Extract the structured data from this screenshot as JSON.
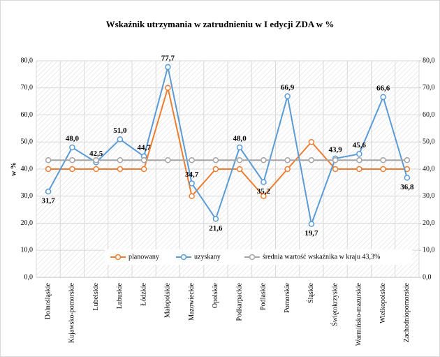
{
  "chart_data": {
    "type": "line",
    "title": "Wskaźnik utrzymania  w zatrudnieniu  w I edycji ZDA w %",
    "y_label": "w %",
    "categories": [
      "Dolnośląskie",
      "Kujawsko-pomorskie",
      "Lubelskie",
      "Lubuskie",
      "Łódzkie",
      "Małopolskie",
      "Mazowieckie",
      "Opolskie",
      "Podkarpackie",
      "Podlaskie",
      "Pomorskie",
      "Śląskie",
      "Świętokrzyskie",
      "Warmińsko-mazurskie",
      "Wielkopolskie",
      "Zachodniopomorskie"
    ],
    "series": [
      {
        "name": "planowany",
        "color": "#ed7d31",
        "values": [
          40,
          40,
          40,
          40,
          40,
          70,
          30,
          40,
          40,
          30,
          40,
          50,
          40,
          40,
          40,
          40
        ]
      },
      {
        "name": "uzyskany",
        "color": "#5b9bd5",
        "values": [
          31.7,
          48.0,
          42.5,
          51.0,
          44.7,
          77.7,
          34.7,
          21.6,
          48.0,
          35.2,
          66.9,
          19.7,
          43.9,
          45.6,
          66.6,
          36.8
        ],
        "value_labels": [
          "31,7",
          "48,0",
          "42,5",
          "51,0",
          "44,7",
          "77,7",
          "34,7",
          "21,6",
          "48,0",
          "35,2",
          "66,9",
          "19,7",
          "43,9",
          "45,6",
          "66,6",
          "36,8"
        ]
      },
      {
        "name": "średnia wartość wskaźnika w kraju 43,3%",
        "color": "#a5a5a5",
        "values": [
          43.3,
          43.3,
          43.3,
          43.3,
          43.3,
          43.3,
          43.3,
          43.3,
          43.3,
          43.3,
          43.3,
          43.3,
          43.3,
          43.3,
          43.3,
          43.3
        ]
      }
    ],
    "ylim": [
      0,
      80
    ],
    "yticks": [
      {
        "value": 0,
        "label": "0,0"
      },
      {
        "value": 10,
        "label": "10,0"
      },
      {
        "value": 20,
        "label": "20,0"
      },
      {
        "value": 30,
        "label": "30,0"
      },
      {
        "value": 40,
        "label": "40,0"
      },
      {
        "value": 50,
        "label": "50,0"
      },
      {
        "value": 60,
        "label": "60,0"
      },
      {
        "value": 70,
        "label": "70,0"
      },
      {
        "value": 80,
        "label": "80,0"
      }
    ],
    "y2lim": [
      0,
      80
    ],
    "y2ticks": [
      {
        "value": 0,
        "label": "0,0"
      },
      {
        "value": 10,
        "label": "10,0"
      },
      {
        "value": 20,
        "label": "20,0"
      },
      {
        "value": 30,
        "label": "30,0"
      },
      {
        "value": 40,
        "label": "40,0"
      },
      {
        "value": 50,
        "label": "50,0"
      },
      {
        "value": 60,
        "label": "60,0"
      },
      {
        "value": 70,
        "label": "70,0"
      },
      {
        "value": 80,
        "label": "80,0"
      }
    ],
    "grid": true,
    "legend": "bottom"
  }
}
